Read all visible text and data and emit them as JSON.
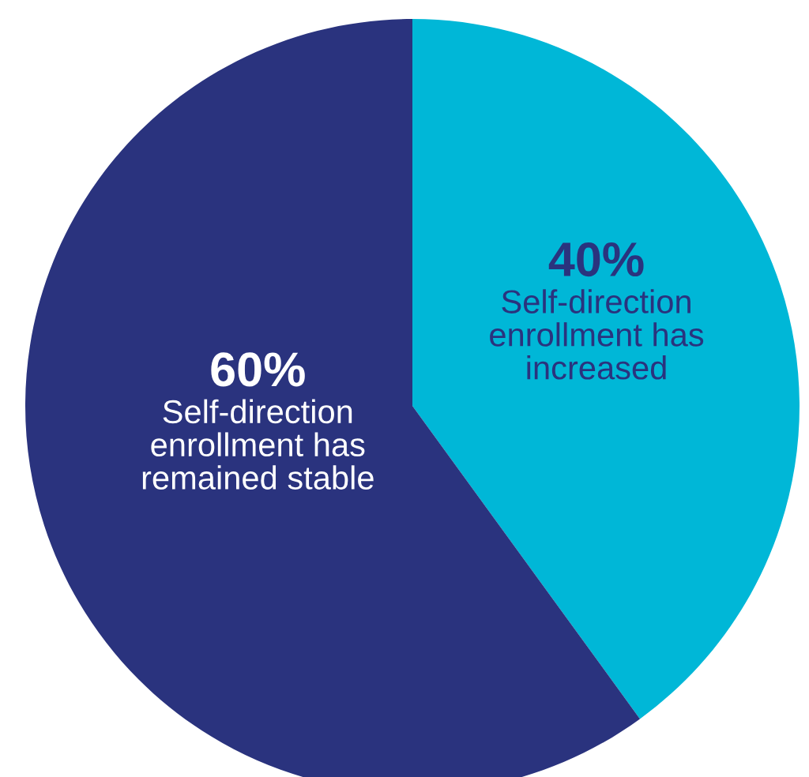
{
  "chart_data": {
    "type": "pie",
    "categories": [
      "Self-direction\nenrollment has\nincreased",
      "Self-direction\nenrollment has\nremained stable"
    ],
    "values": [
      40,
      60
    ],
    "colors": [
      "#00b7d7",
      "#2a337e"
    ],
    "value_labels": [
      "40%",
      "60%"
    ]
  }
}
